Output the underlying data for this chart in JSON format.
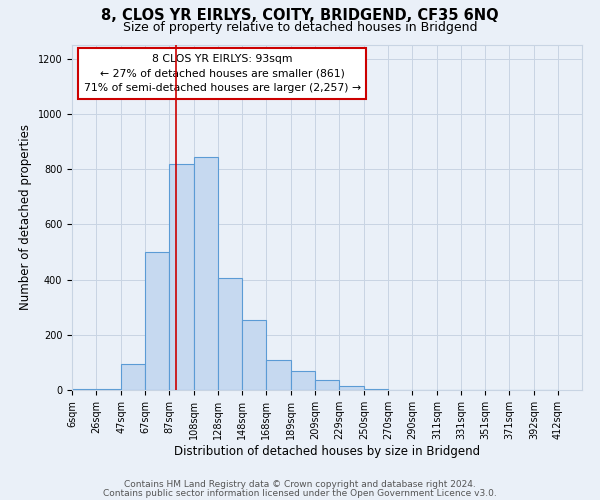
{
  "title": "8, CLOS YR EIRLYS, COITY, BRIDGEND, CF35 6NQ",
  "subtitle": "Size of property relative to detached houses in Bridgend",
  "xlabel": "Distribution of detached houses by size in Bridgend",
  "ylabel": "Number of detached properties",
  "bin_labels": [
    "6sqm",
    "26sqm",
    "47sqm",
    "67sqm",
    "87sqm",
    "108sqm",
    "128sqm",
    "148sqm",
    "168sqm",
    "189sqm",
    "209sqm",
    "229sqm",
    "250sqm",
    "270sqm",
    "290sqm",
    "311sqm",
    "331sqm",
    "351sqm",
    "371sqm",
    "392sqm",
    "412sqm"
  ],
  "bin_edges": [
    6,
    26,
    47,
    67,
    87,
    108,
    128,
    148,
    168,
    189,
    209,
    229,
    250,
    270,
    290,
    311,
    331,
    351,
    371,
    392,
    412
  ],
  "bar_heights": [
    5,
    5,
    95,
    500,
    820,
    845,
    405,
    255,
    110,
    68,
    35,
    15,
    5,
    0,
    0,
    0,
    0,
    0,
    0,
    0
  ],
  "bar_color": "#c6d9f0",
  "bar_edgecolor": "#5b9bd5",
  "bar_linewidth": 0.8,
  "redline_x": 93,
  "annotation_line1": "8 CLOS YR EIRLYS: 93sqm",
  "annotation_line2": "← 27% of detached houses are smaller (861)",
  "annotation_line3": "71% of semi-detached houses are larger (2,257) →",
  "box_edgecolor": "#cc0000",
  "box_facecolor": "#ffffff",
  "ylim": [
    0,
    1250
  ],
  "yticks": [
    0,
    200,
    400,
    600,
    800,
    1000,
    1200
  ],
  "footer1": "Contains HM Land Registry data © Crown copyright and database right 2024.",
  "footer2": "Contains public sector information licensed under the Open Government Licence v3.0.",
  "bg_color": "#eaf0f8",
  "plot_bg_color": "#eaf0f8",
  "grid_color": "#c8d4e3",
  "title_fontsize": 10.5,
  "subtitle_fontsize": 9,
  "axis_label_fontsize": 8.5,
  "tick_fontsize": 7,
  "footer_fontsize": 6.5,
  "annotation_fontsize": 7.8
}
